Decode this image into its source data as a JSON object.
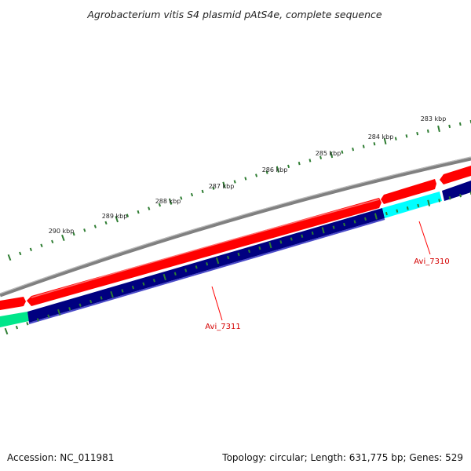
{
  "title": "Agrobacterium vitis S4 plasmid pAtS4e, complete sequence",
  "ticks": [
    "283 kbp",
    "284 kbp",
    "285 kbp",
    "286 kbp",
    "287 kbp",
    "288 kbp",
    "289 kbp",
    "290 kbp"
  ],
  "genes": [
    {
      "label": "Avi_7310",
      "color": "#00ffff",
      "strand": "reverse"
    },
    {
      "label": "Avi_7311",
      "color": "#000080",
      "strand": "reverse"
    }
  ],
  "colors": {
    "backbone": "#808080",
    "forward_cds": "#ff0000",
    "reverse_cds_dark": "#000080",
    "reverse_cds_cyan": "#00ffff",
    "reverse_cds_green": "#00e68a",
    "ticks": "#2e7d32",
    "label_line": "#ff0000"
  },
  "footer": {
    "accession": "Accession: NC_011981",
    "summary": "Topology: circular; Length: 631,775 bp; Genes: 529"
  }
}
